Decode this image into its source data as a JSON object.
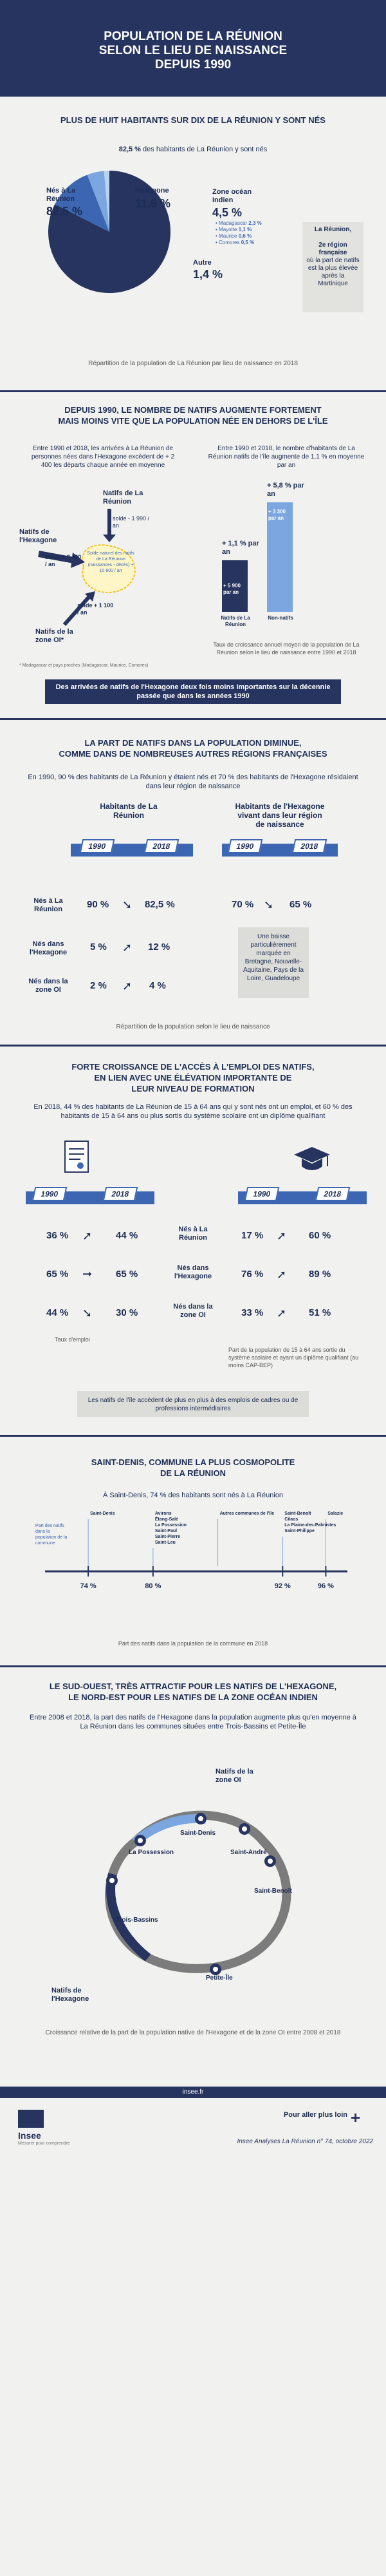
{
  "header": {
    "title_line1": "POPULATION DE LA RÉUNION",
    "title_line2": "SELON LE LIEU DE NAISSANCE",
    "title_line3": "DEPUIS 1990"
  },
  "s1": {
    "title": "PLUS DE HUIT HABITANTS SUR DIX DE LA RÉUNION Y SONT NÉS",
    "sub_bold": "82,5 %",
    "sub_rest": " des habitants de La Réunion y sont nés",
    "pie": {
      "reunion_label": "Nés à La Réunion",
      "reunion_value": "82,5 %",
      "hexagone_label": "Hexagone",
      "hexagone_value": "11,6 %",
      "oi_label": "Zone océan Indien",
      "oi_value": "4,5 %",
      "oi_details": [
        {
          "name": "Madagascar",
          "value": "2,3 %"
        },
        {
          "name": "Mayotte",
          "value": "1,1 %"
        },
        {
          "name": "Maurice",
          "value": "0,6 %"
        },
        {
          "name": "Comores",
          "value": "0,5 %"
        }
      ],
      "autre_label": "Autre",
      "autre_value": "1,4 %",
      "colors": {
        "reunion": "#26345f",
        "hexagone": "#3c66b1",
        "oi": "#7ba6df",
        "autre": "#b9d2f0"
      }
    },
    "box_title": "La Réunion,",
    "box_text_bold": "2e région française",
    "box_text": "où la part de natifs est la plus élevée après la Martinique",
    "caption": "Répartition de la population de La Réunion par lieu de naissance en 2018"
  },
  "s2": {
    "title_line1": "DEPUIS 1990, LE NOMBRE DE NATIFS AUGMENTE FORTEMENT",
    "title_line2": "MAIS MOINS VITE QUE LA POPULATION NÉE EN DEHORS DE L'ÎLE",
    "left_text": "Entre 1990 et 2018, les arrivées à La Réunion de personnes nées dans l'Hexagone excèdent de + 2 400 les départs chaque année en moyenne",
    "right_text": "Entre 1990 et 2018, le nombre d'habitants de La Réunion natifs de l'île augmente de 1,1 % en moyenne par an",
    "flow": {
      "natifs_hexagone_top": "Natifs de La Réunion",
      "solde_top": "solde - 1 990 / an",
      "natifs_hexagone_left": "Natifs de l'Hexagone",
      "solde_left": "solde + 2 400 / an",
      "center": "Solde naturel des natifs de La Réunion (naissances - décès) + 10 600 / an",
      "solde_bottom": "solde + 1 100 / an",
      "natifs_oi": "Natifs de la zone OI*",
      "footnote": "* Madagascar et pays proches (Madagascar, Maurice, Comores)"
    },
    "bars": {
      "natifs_rate": "+ 1,1 % par an",
      "natifs_count": "+ 5 900 par an",
      "non_natifs_rate": "+ 5,8 % par an",
      "non_natifs_count": "+ 3 300 par an",
      "natifs_label": "Natifs de La Réunion",
      "non_natifs_label": "Non-natifs",
      "caption": "Taux de croissance annuel moyen de la population de La Réunion selon le lieu de naissance entre 1990 et 2018"
    },
    "callout": "Des arrivées de natifs de l'Hexagone deux fois moins importantes sur la décennie passée que dans les années 1990"
  },
  "s3": {
    "title_line1": "LA PART DE NATIFS DANS LA POPULATION DIMINUE,",
    "title_line2": "COMME DANS DE NOMBREUSES AUTRES RÉGIONS FRANÇAISES",
    "intro": "En 1990, 90 % des habitants de La Réunion y étaient nés et 70 % des habitants de l'Hexagone résidaient dans leur région de naissance",
    "col1_title": "Habitants de La Réunion",
    "col2_title": "Habitants de l'Hexagone vivant dans leur région de naissance",
    "year1": "1990",
    "year2": "2018",
    "rows": [
      {
        "label": "Nés à La Réunion",
        "v1990": "90 %",
        "v2018": "82,5 %"
      },
      {
        "label": "Nés dans l'Hexagone",
        "v1990": "5 %",
        "v2018": "12 %"
      },
      {
        "label": "Nés dans la zone OI",
        "v1990": "2 %",
        "v2018": "4 %"
      }
    ],
    "hex_v1990": "70 %",
    "hex_v2018": "65 %",
    "hex_box": "Une baisse particulièrement marquée en Bretagne, Nouvelle-Aquitaine, Pays de la Loire, Guadeloupe",
    "caption": "Répartition de la population selon le lieu de naissance"
  },
  "s4": {
    "title_line1": "FORTE CROISSANCE DE L'ACCÈS À L'EMPLOI DES NATIFS,",
    "title_line2": "EN LIEN AVEC UNE ÉLÉVATION IMPORTANTE DE",
    "title_line3": "LEUR NIVEAU DE FORMATION",
    "intro": "En 2018, 44 % des habitants de La Réunion de 15 à 64 ans qui y sont nés ont un emploi, et 60 % des habitants de 15 à 64 ans ou plus sortis du système scolaire ont un diplôme qualifiant",
    "year1": "1990",
    "year2": "2018",
    "rows": [
      {
        "label": "Nés à La Réunion",
        "e1990": "36 %",
        "e2018": "44 %",
        "d1990": "17 %",
        "d2018": "60 %"
      },
      {
        "label": "Nés dans l'Hexagone",
        "e1990": "65 %",
        "e2018": "65 %",
        "d1990": "76 %",
        "d2018": "89 %"
      },
      {
        "label": "Nés dans la zone OI",
        "e1990": "44 %",
        "e2018": "30 %",
        "d1990": "33 %",
        "d2018": "51 %"
      }
    ],
    "left_caption": "Taux d'emploi",
    "right_caption": "Part de la population de 15 à 64 ans sortie du système scolaire et ayant un diplôme qualifiant (au moins CAP-BEP)",
    "box": "Les natifs de l'île accèdent de plus en plus à des emplois de cadres ou de professions intermédiaires"
  },
  "s5": {
    "title_line1": "SAINT-DENIS, COMMUNE LA PLUS COSMOPOLITE",
    "title_line2": "DE LA RÉUNION",
    "intro": "À Saint-Denis, 74 % des habitants sont nés à La Réunion",
    "axis_note": "Part des natifs dans la population de la commune",
    "ticks": [
      {
        "label": "74 %",
        "value": 74
      },
      {
        "label": "80 %",
        "value": 80
      },
      {
        "label": "92 %",
        "value": 92
      },
      {
        "label": "96 %",
        "value": 96
      }
    ],
    "communes": [
      {
        "name": "Saint-Denis",
        "value": 74
      },
      {
        "name": "Avirons\nÉtang-Salé\nLa Possession\nSaint-Paul\nSaint-Pierre\nSaint-Leu",
        "value": 80
      },
      {
        "name": "Autres communes de l'île",
        "value": 86
      },
      {
        "name": "Saint-Benoît\nCilaos\nLa Plaine-des-Palmistes\nSaint-Philippe",
        "value": 92
      },
      {
        "name": "Salazie",
        "value": 96
      }
    ],
    "caption": "Part des natifs dans la population de la commune en 2018"
  },
  "s6": {
    "title_line1": "LE SUD-OUEST, TRÈS ATTRACTIF POUR LES NATIFS DE L'HEXAGONE,",
    "title_line2": "LE NORD-EST POUR LES NATIFS DE LA ZONE OCÉAN INDIEN",
    "intro": "Entre 2008 et 2018, la part des natifs de l'Hexagone dans la population augmente plus qu'en moyenne à La Réunion dans les communes situées entre Trois-Bassins et Petite-Île",
    "map_labels": {
      "natifs_oi": "Natifs de la zone OI",
      "la_possession": "La Possession",
      "saint_denis": "Saint-Denis",
      "saint_andre": "Saint-André",
      "saint_benoit": "Saint-Benoît",
      "trois_bassins": "Trois-Bassins",
      "petite_ile": "Petite-Île",
      "natifs_hexagone": "Natifs de l'Hexagone"
    },
    "caption": "Croissance relative de la part de la population native de l'Hexagone et de la zone OI entre 2008 et 2018"
  },
  "footer": {
    "site": "insee.fr",
    "logo": "Insee",
    "logo_sub": "Mesurer pour comprendre",
    "more": "Pour aller plus loin",
    "source": "Insee Analyses La Réunion n° 74, octobre 2022"
  }
}
